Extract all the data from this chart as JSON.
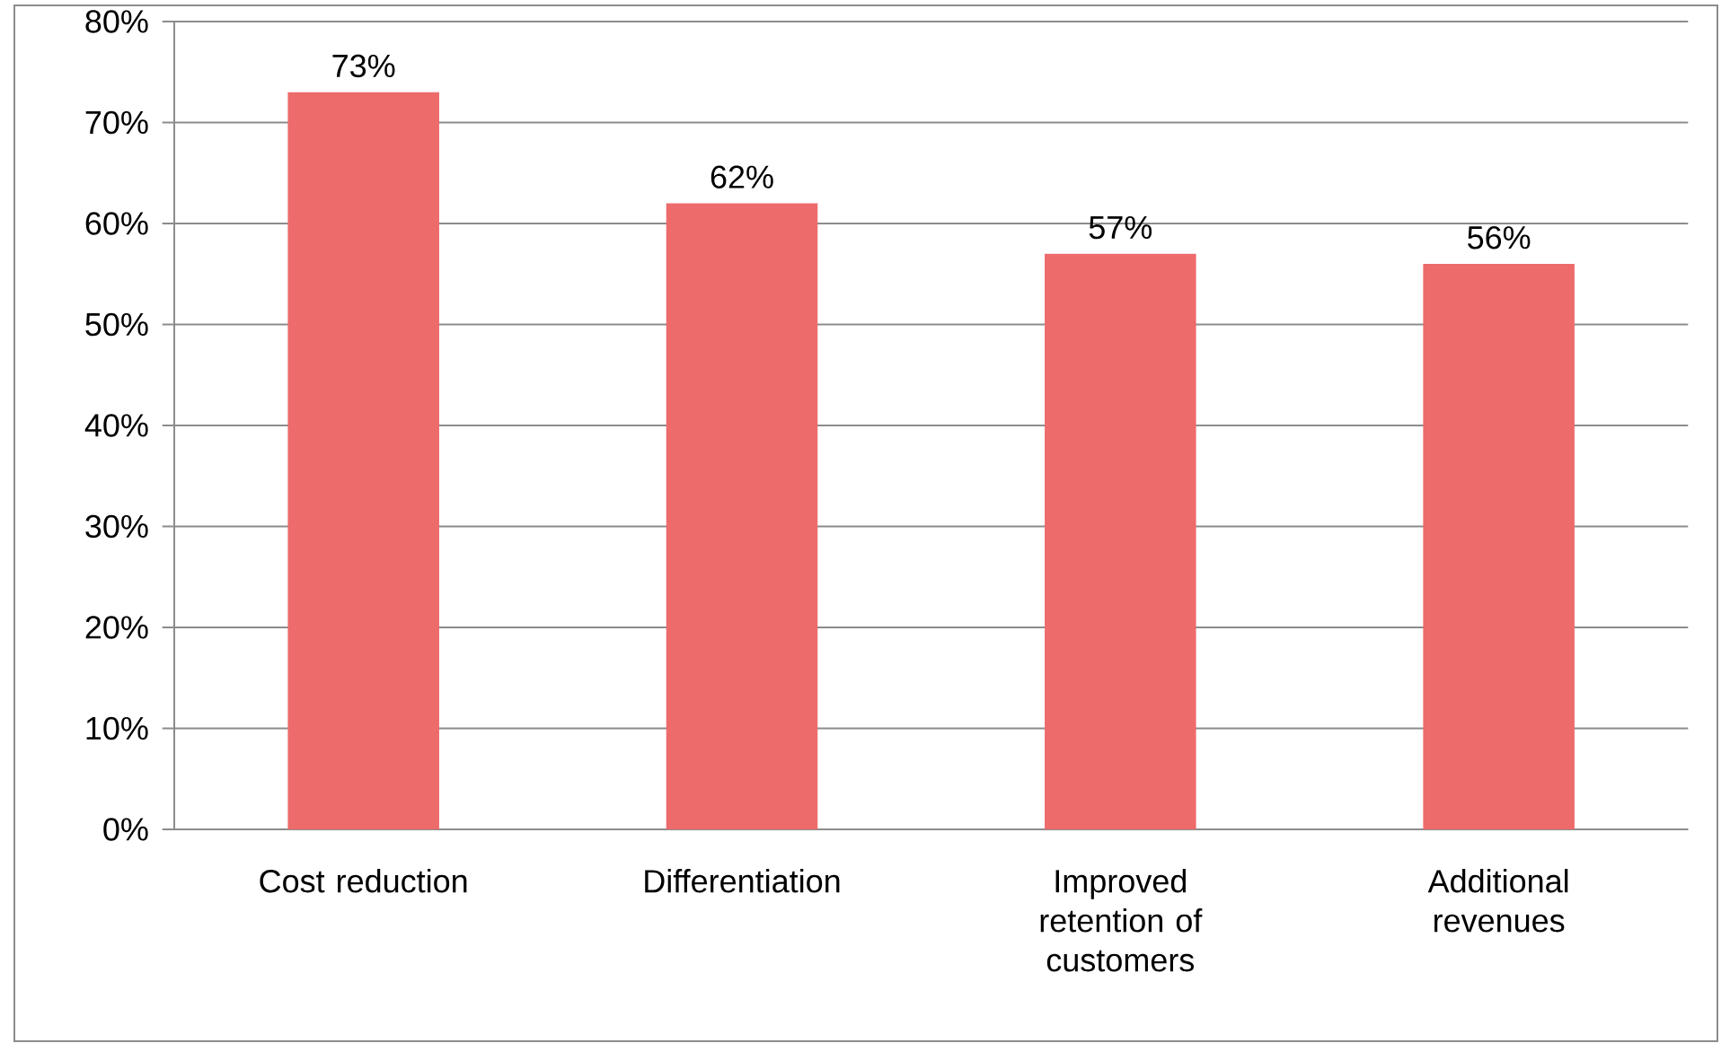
{
  "chart_data": {
    "type": "bar",
    "categories": [
      "Cost reduction",
      "Differentiation",
      "Improved retention of customers",
      "Additional revenues"
    ],
    "values": [
      73,
      62,
      57,
      56
    ],
    "value_labels": [
      "73%",
      "62%",
      "57%",
      "56%"
    ],
    "color": "#ed6b6b",
    "ylim": [
      0,
      80
    ],
    "yticks": [
      {
        "value": 0,
        "label": "0%"
      },
      {
        "value": 10,
        "label": "10%"
      },
      {
        "value": 20,
        "label": "20%"
      },
      {
        "value": 30,
        "label": "30%"
      },
      {
        "value": 40,
        "label": "40%"
      },
      {
        "value": 50,
        "label": "50%"
      },
      {
        "value": 60,
        "label": "60%"
      },
      {
        "value": 70,
        "label": "70%"
      },
      {
        "value": 80,
        "label": "80%"
      }
    ],
    "grid": "y"
  }
}
